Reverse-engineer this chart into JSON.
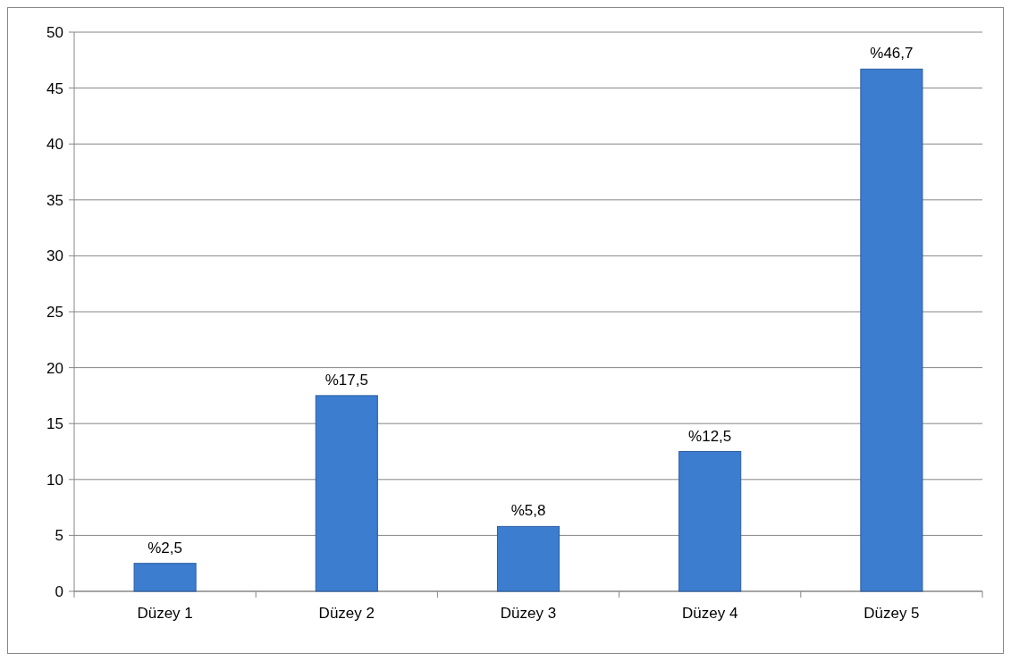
{
  "chart_data": {
    "type": "bar",
    "categories": [
      "Düzey 1",
      "Düzey 2",
      "Düzey 3",
      "Düzey 4",
      "Düzey 5"
    ],
    "values": [
      2.5,
      17.5,
      5.8,
      12.5,
      46.7
    ],
    "value_labels": [
      "%2,5",
      "%17,5",
      "%5,8",
      "%12,5",
      "%46,7"
    ],
    "color": "#3c7dd0",
    "ylim": [
      0,
      50
    ],
    "yticks": [
      0,
      5,
      10,
      15,
      20,
      25,
      30,
      35,
      40,
      45,
      50
    ],
    "grid": "y"
  }
}
